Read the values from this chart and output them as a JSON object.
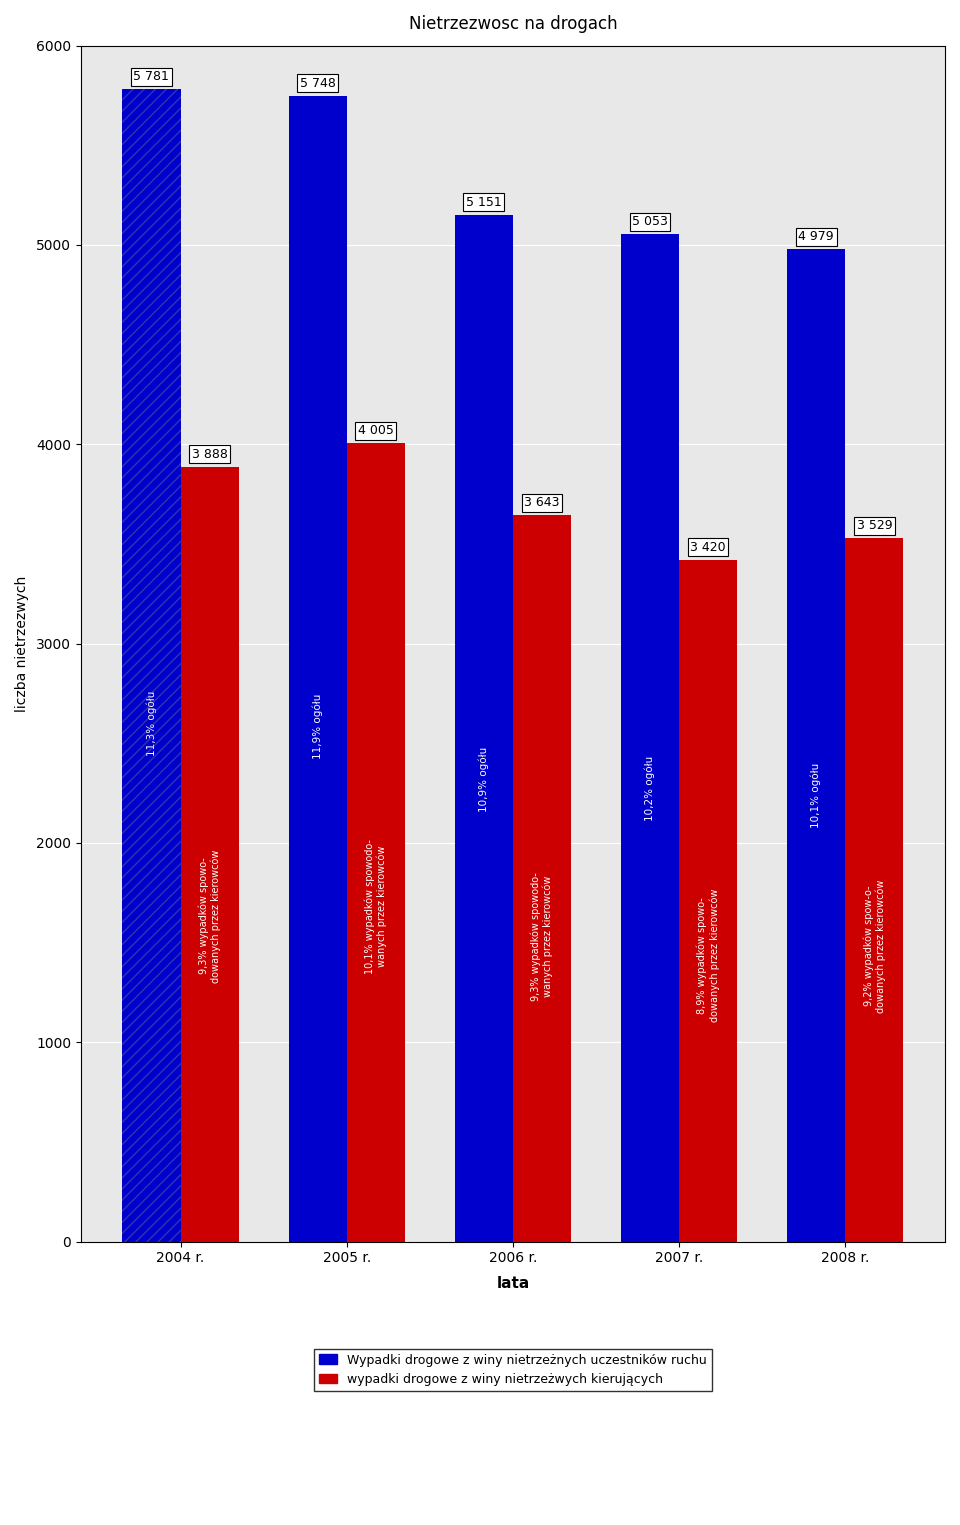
{
  "title": "Nietrzezwosc na drogach",
  "xlabel": "lata",
  "ylabel": "liczba nietrzezwych",
  "years": [
    "2004 r.",
    "2005 r.",
    "2006 r.",
    "2007 r.",
    "2008 r."
  ],
  "blue_values": [
    5781,
    5748,
    5151,
    5053,
    4979
  ],
  "red_values": [
    3888,
    4005,
    3643,
    3420,
    3529
  ],
  "blue_labels": [
    "11,3% ogółu",
    "11,9% ogółu",
    "10,9% ogółu",
    "10,2% ogółu",
    "10,1% ogółu"
  ],
  "red_labels": [
    "9,3% wypadków spowo-\ndowanych przez kierowców",
    "10,1% wypadków spowodo-\nwanych przez kierowców",
    "9,3% wypadków spowodo-\nwanych przez kierowców",
    "8,9% wypadków spowo-\ndowanych przez kierowców",
    "9,2% wypadków spow-o-\ndowanych przez kierowców"
  ],
  "ylim": [
    0,
    6000
  ],
  "yticks": [
    0,
    1000,
    2000,
    3000,
    4000,
    5000,
    6000
  ],
  "blue_color": "#0000CC",
  "red_color": "#CC0000",
  "legend_blue": "Wypadki drogowe z winy nietrzeżnych uczestników ruchu",
  "legend_red": "wypadki drogowe z winy nietrzeżwych kierujących",
  "bg_color": "#E8E8E8",
  "plot_bg": "#FFFFFF"
}
